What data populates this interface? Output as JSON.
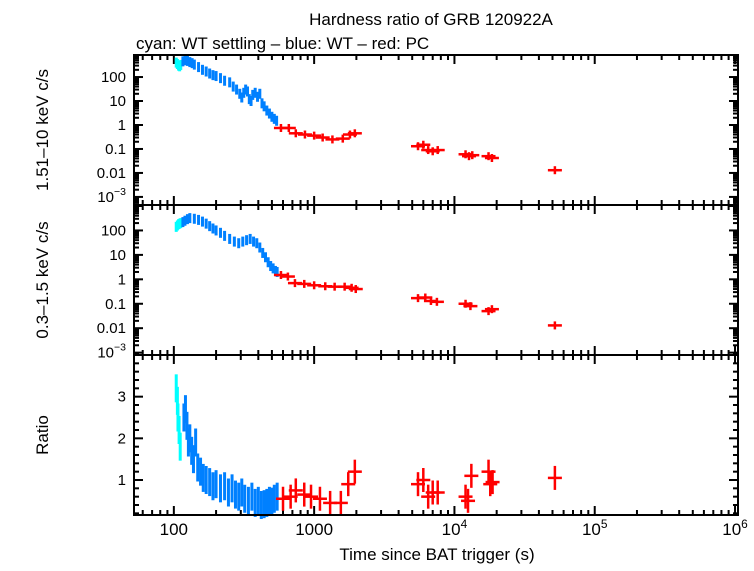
{
  "chart_data": {
    "type": "scatter",
    "title": "Hardness ratio of GRB 120922A",
    "subtitle": "cyan: WT settling – blue: WT – red: PC",
    "xlabel": "Time since BAT trigger (s)",
    "xscale": "log",
    "xlim": [
      52,
      1050000
    ],
    "x_ticks": [
      {
        "value": 100,
        "label": "100"
      },
      {
        "value": 1000,
        "label": "1000"
      },
      {
        "value": 10000,
        "label": "10",
        "exp": "4"
      },
      {
        "value": 100000,
        "label": "10",
        "exp": "5"
      },
      {
        "value": 1000000,
        "label": "10",
        "exp": "6"
      }
    ],
    "colors": {
      "wt_settling": "#00ffff",
      "wt": "#0080ff",
      "pc": "#ff0000"
    },
    "grid": false,
    "panels": [
      {
        "ylabel": "1.51–10 keV c/s",
        "yscale": "log",
        "ylim": [
          0.00046,
          830
        ],
        "y_ticks": [
          {
            "value": 100,
            "label": "100"
          },
          {
            "value": 10,
            "label": "10"
          },
          {
            "value": 1,
            "label": "1"
          },
          {
            "value": 0.1,
            "label": "0.1"
          },
          {
            "value": 0.01,
            "label": "0.01"
          },
          {
            "value": 0.001,
            "label": "10",
            "exp": "−3"
          }
        ],
        "series": {
          "wt_settling": [
            [
              104,
              400
            ],
            [
              106,
              350
            ],
            [
              108,
              300
            ],
            [
              110,
              280
            ],
            [
              112,
              320
            ]
          ],
          "wt": [
            [
              116,
              450
            ],
            [
              120,
              500
            ],
            [
              125,
              470
            ],
            [
              130,
              420
            ],
            [
              135,
              380
            ],
            [
              140,
              330
            ],
            [
              150,
              260
            ],
            [
              160,
              200
            ],
            [
              170,
              170
            ],
            [
              180,
              140
            ],
            [
              190,
              120
            ],
            [
              200,
              110
            ],
            [
              215,
              90
            ],
            [
              230,
              70
            ],
            [
              250,
              60
            ],
            [
              265,
              40
            ],
            [
              280,
              30
            ],
            [
              295,
              20
            ],
            [
              305,
              14
            ],
            [
              315,
              22
            ],
            [
              325,
              30
            ],
            [
              335,
              25
            ],
            [
              345,
              12
            ],
            [
              355,
              10
            ],
            [
              365,
              18
            ],
            [
              380,
              22
            ],
            [
              395,
              15
            ],
            [
              410,
              20
            ],
            [
              425,
              8
            ],
            [
              440,
              6
            ],
            [
              460,
              4
            ],
            [
              480,
              3
            ],
            [
              500,
              2.2
            ],
            [
              520,
              1.8
            ],
            [
              540,
              1.5
            ]
          ],
          "pc": [
            [
              580,
              0.75
            ],
            [
              660,
              0.75
            ],
            [
              740,
              0.45
            ],
            [
              860,
              0.4
            ],
            [
              1000,
              0.36
            ],
            [
              1150,
              0.3
            ],
            [
              1350,
              0.25
            ],
            [
              1600,
              0.27
            ],
            [
              1800,
              0.4
            ],
            [
              1950,
              0.45
            ],
            [
              5500,
              0.13
            ],
            [
              6000,
              0.15
            ],
            [
              6500,
              0.09
            ],
            [
              7000,
              0.08
            ],
            [
              7600,
              0.09
            ],
            [
              12000,
              0.06
            ],
            [
              12700,
              0.05
            ],
            [
              13400,
              0.055
            ],
            [
              17500,
              0.05
            ],
            [
              18500,
              0.042
            ],
            [
              52000,
              0.013
            ]
          ]
        }
      },
      {
        "ylabel": "0.3–1.5 keV c/s",
        "yscale": "log",
        "ylim": [
          0.0008,
          1100
        ],
        "y_ticks": [
          {
            "value": 100,
            "label": "100"
          },
          {
            "value": 10,
            "label": "10"
          },
          {
            "value": 1,
            "label": "1"
          },
          {
            "value": 0.1,
            "label": "0.1"
          },
          {
            "value": 0.01,
            "label": "0.01"
          },
          {
            "value": 0.001,
            "label": "10",
            "exp": "−3"
          }
        ],
        "series": {
          "wt_settling": [
            [
              104,
              140
            ],
            [
              106,
              160
            ],
            [
              108,
              180
            ],
            [
              110,
              190
            ],
            [
              112,
              200
            ]
          ],
          "wt": [
            [
              116,
              220
            ],
            [
              120,
              250
            ],
            [
              125,
              290
            ],
            [
              130,
              320
            ],
            [
              140,
              300
            ],
            [
              150,
              270
            ],
            [
              160,
              230
            ],
            [
              170,
              190
            ],
            [
              180,
              150
            ],
            [
              190,
              120
            ],
            [
              200,
              100
            ],
            [
              215,
              80
            ],
            [
              230,
              60
            ],
            [
              250,
              45
            ],
            [
              270,
              35
            ],
            [
              290,
              30
            ],
            [
              310,
              35
            ],
            [
              330,
              40
            ],
            [
              350,
              45
            ],
            [
              370,
              35
            ],
            [
              390,
              30
            ],
            [
              410,
              20
            ],
            [
              430,
              12
            ],
            [
              450,
              8
            ],
            [
              470,
              5
            ],
            [
              490,
              3.5
            ],
            [
              510,
              2.8
            ],
            [
              530,
              2.2
            ],
            [
              545,
              2
            ]
          ],
          "pc": [
            [
              580,
              1.5
            ],
            [
              650,
              1.3
            ],
            [
              730,
              0.7
            ],
            [
              850,
              0.65
            ],
            [
              1000,
              0.57
            ],
            [
              1200,
              0.52
            ],
            [
              1400,
              0.5
            ],
            [
              1650,
              0.5
            ],
            [
              1850,
              0.45
            ],
            [
              1980,
              0.4
            ],
            [
              5500,
              0.17
            ],
            [
              6200,
              0.18
            ],
            [
              6800,
              0.13
            ],
            [
              7500,
              0.12
            ],
            [
              12000,
              0.1
            ],
            [
              13000,
              0.08
            ],
            [
              17500,
              0.05
            ],
            [
              18500,
              0.06
            ],
            [
              52000,
              0.013
            ]
          ]
        }
      },
      {
        "ylabel": "Ratio",
        "yscale": "linear",
        "ylim": [
          0.16,
          4.0
        ],
        "y_ticks": [
          {
            "value": 1,
            "label": "1"
          },
          {
            "value": 2,
            "label": "2"
          },
          {
            "value": 3,
            "label": "3"
          }
        ],
        "series": {
          "wt_settling": [
            [
              104,
              3.2
            ],
            [
              106,
              2.9
            ],
            [
              107,
              2.5
            ],
            [
              109,
              2.2
            ],
            [
              111,
              1.8
            ]
          ],
          "wt": [
            [
              118,
              2.5
            ],
            [
              121,
              2.7
            ],
            [
              124,
              2.3
            ],
            [
              127,
              1.9
            ],
            [
              130,
              2.0
            ],
            [
              134,
              1.7
            ],
            [
              138,
              1.5
            ],
            [
              143,
              1.9
            ],
            [
              148,
              1.3
            ],
            [
              155,
              1.2
            ],
            [
              162,
              1.05
            ],
            [
              170,
              1.0
            ],
            [
              180,
              0.95
            ],
            [
              190,
              0.85
            ],
            [
              200,
              0.9
            ],
            [
              215,
              0.8
            ],
            [
              230,
              0.85
            ],
            [
              245,
              0.7
            ],
            [
              260,
              0.8
            ],
            [
              275,
              0.65
            ],
            [
              290,
              0.6
            ],
            [
              305,
              0.7
            ],
            [
              320,
              0.55
            ],
            [
              340,
              0.5
            ],
            [
              360,
              0.6
            ],
            [
              380,
              0.45
            ],
            [
              400,
              0.5
            ],
            [
              420,
              0.4
            ],
            [
              440,
              0.42
            ],
            [
              460,
              0.45
            ],
            [
              480,
              0.5
            ],
            [
              500,
              0.48
            ],
            [
              520,
              0.55
            ],
            [
              545,
              0.6
            ]
          ],
          "pc": [
            [
              600,
              0.55
            ],
            [
              680,
              0.6
            ],
            [
              740,
              0.75
            ],
            [
              850,
              0.65
            ],
            [
              950,
              0.6
            ],
            [
              1100,
              0.55
            ],
            [
              1300,
              0.45
            ],
            [
              1550,
              0.45
            ],
            [
              1750,
              0.9
            ],
            [
              1950,
              1.2
            ],
            [
              5500,
              0.9
            ],
            [
              6000,
              1.0
            ],
            [
              6500,
              0.6
            ],
            [
              7000,
              0.7
            ],
            [
              7600,
              0.7
            ],
            [
              12000,
              0.6
            ],
            [
              12500,
              0.5
            ],
            [
              13200,
              1.1
            ],
            [
              17500,
              1.2
            ],
            [
              18000,
              0.9
            ],
            [
              18700,
              0.95
            ],
            [
              52000,
              1.05
            ]
          ]
        }
      }
    ]
  }
}
